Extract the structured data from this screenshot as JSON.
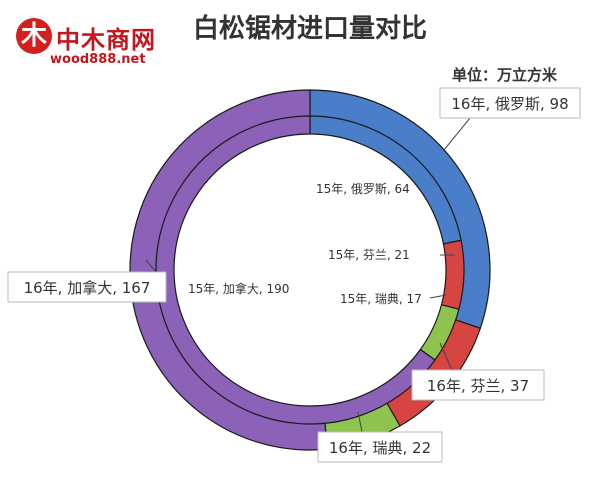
{
  "logo": {
    "mark": "木",
    "name": "中木商网",
    "url": "wood888.net"
  },
  "chart_data": {
    "type": "pie",
    "title": "白松锯材进口量对比",
    "unit_label": "单位：万立方米",
    "rings": [
      {
        "name": "16年",
        "position": "outer",
        "slices": [
          {
            "label": "16年, 俄罗斯, 98",
            "country": "俄罗斯",
            "value": 98,
            "color": "#4a7ec8"
          },
          {
            "label": "16年, 芬兰, 37",
            "country": "芬兰",
            "value": 37,
            "color": "#d64541"
          },
          {
            "label": "16年, 瑞典, 22",
            "country": "瑞典",
            "value": 22,
            "color": "#8dc34e"
          },
          {
            "label": "16年, 加拿大, 167",
            "country": "加拿大",
            "value": 167,
            "color": "#8b62b8"
          }
        ]
      },
      {
        "name": "15年",
        "position": "inner",
        "slices": [
          {
            "label": "15年, 俄罗斯, 64",
            "country": "俄罗斯",
            "value": 64,
            "color": "#4a7ec8"
          },
          {
            "label": "15年, 芬兰, 21",
            "country": "芬兰",
            "value": 21,
            "color": "#d64541"
          },
          {
            "label": "15年, 瑞典, 17",
            "country": "瑞典",
            "value": 17,
            "color": "#8dc34e"
          },
          {
            "label": "15年, 加拿大, 190",
            "country": "加拿大",
            "value": 190,
            "color": "#8b62b8"
          }
        ]
      }
    ]
  }
}
